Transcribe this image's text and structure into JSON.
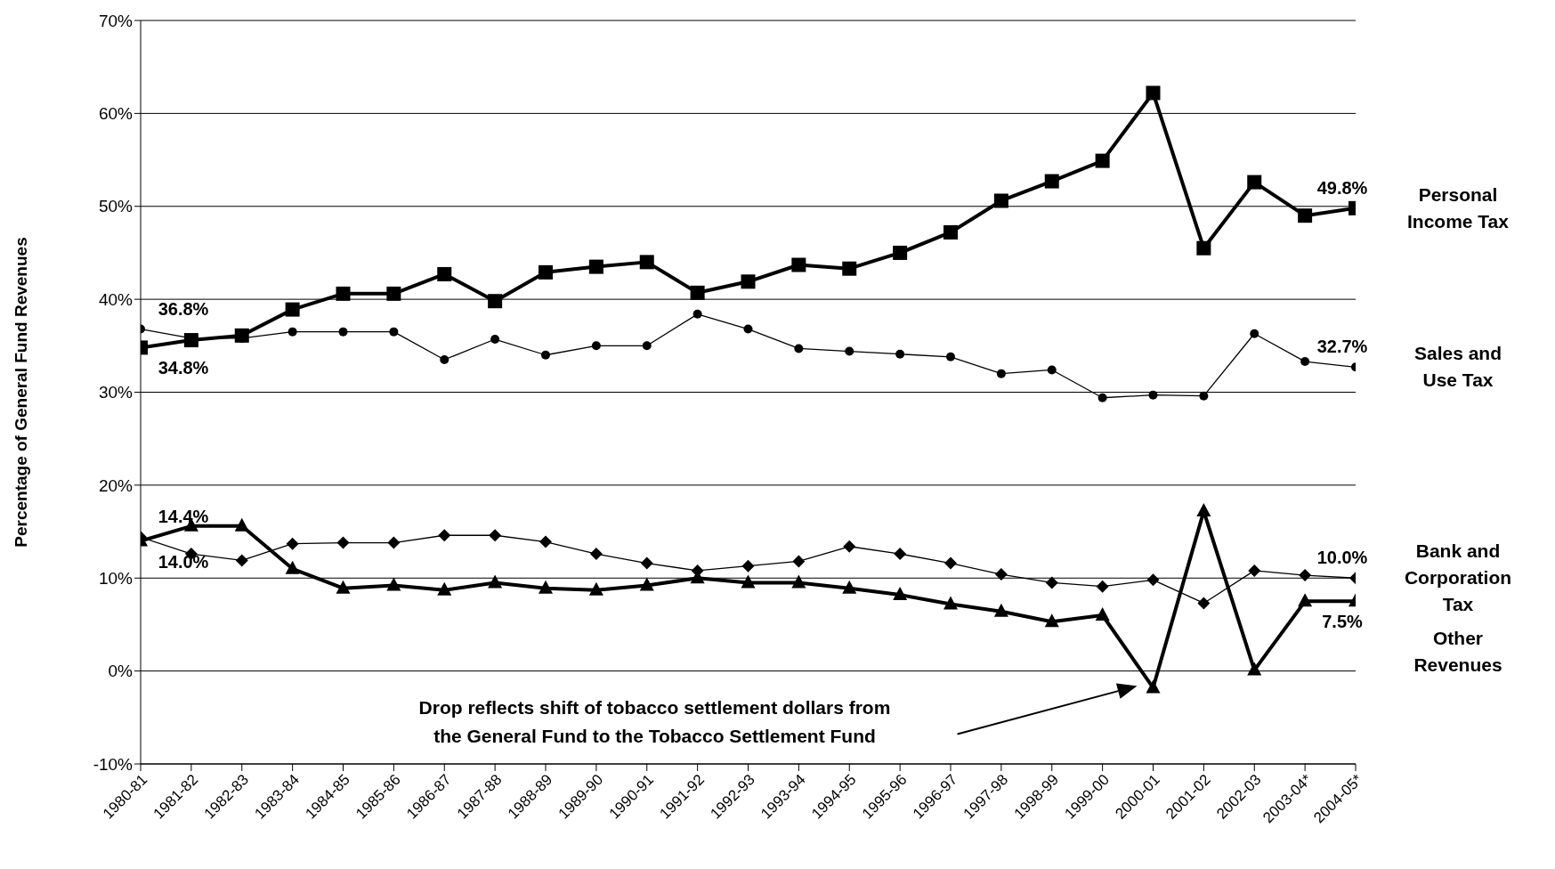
{
  "chart_data": {
    "type": "line",
    "ylabel": "Percentage of General Fund Revenues",
    "categories": [
      "1980-81",
      "1981-82",
      "1982-83",
      "1983-84",
      "1984-85",
      "1985-86",
      "1986-87",
      "1987-88",
      "1988-89",
      "1989-90",
      "1990-91",
      "1991-92",
      "1992-93",
      "1993-94",
      "1994-95",
      "1995-96",
      "1996-97",
      "1997-98",
      "1998-99",
      "1999-00",
      "2000-01",
      "2001-02",
      "2002-03",
      "2003-04*",
      "2004-05*"
    ],
    "series": [
      {
        "name": "Personal Income Tax",
        "color": "#000000",
        "marker": "square",
        "values": [
          34.8,
          35.6,
          36.1,
          38.9,
          40.6,
          40.6,
          42.7,
          39.8,
          42.9,
          43.5,
          44.0,
          40.7,
          41.9,
          43.7,
          43.3,
          45.0,
          47.2,
          50.6,
          52.7,
          54.9,
          62.2,
          45.5,
          52.6,
          49.0,
          49.8
        ],
        "value_labels": [
          "34.8%",
          null,
          null,
          null,
          null,
          null,
          null,
          null,
          null,
          null,
          null,
          null,
          null,
          null,
          null,
          null,
          null,
          null,
          null,
          null,
          null,
          null,
          null,
          null,
          "49.8%"
        ]
      },
      {
        "name": "Sales and Use Tax",
        "color": "#000000",
        "marker": "circle",
        "values": [
          36.8,
          35.8,
          35.8,
          36.5,
          36.5,
          36.5,
          33.5,
          35.7,
          34.0,
          35.0,
          35.0,
          38.4,
          36.8,
          34.7,
          34.4,
          34.1,
          33.8,
          32.0,
          32.4,
          29.4,
          29.7,
          29.6,
          36.3,
          33.3,
          32.7
        ],
        "value_labels": [
          "36.8%",
          null,
          null,
          null,
          null,
          null,
          null,
          null,
          null,
          null,
          null,
          null,
          null,
          null,
          null,
          null,
          null,
          null,
          null,
          null,
          null,
          null,
          null,
          null,
          "32.7%"
        ]
      },
      {
        "name": "Bank and Corporation Tax",
        "color": "#000000",
        "marker": "diamond",
        "values": [
          14.4,
          12.6,
          11.9,
          13.7,
          13.8,
          13.8,
          14.6,
          14.6,
          13.9,
          12.6,
          11.6,
          10.8,
          11.3,
          11.8,
          13.4,
          12.6,
          11.6,
          10.4,
          9.5,
          9.1,
          9.8,
          7.3,
          10.8,
          10.3,
          10.0
        ],
        "value_labels": [
          "14.4%",
          null,
          null,
          null,
          null,
          null,
          null,
          null,
          null,
          null,
          null,
          null,
          null,
          null,
          null,
          null,
          null,
          null,
          null,
          null,
          null,
          null,
          null,
          null,
          "10.0%"
        ]
      },
      {
        "name": "Other Revenues",
        "color": "#000000",
        "marker": "triangle",
        "values": [
          14.0,
          15.6,
          15.6,
          11.0,
          8.9,
          9.2,
          8.7,
          9.5,
          8.9,
          8.7,
          9.2,
          10.0,
          9.5,
          9.5,
          8.9,
          8.2,
          7.2,
          6.4,
          5.3,
          6.0,
          -1.8,
          17.2,
          0.1,
          7.5,
          7.5
        ],
        "value_labels": [
          "14.0%",
          null,
          null,
          null,
          null,
          null,
          null,
          null,
          null,
          null,
          null,
          null,
          null,
          null,
          null,
          null,
          null,
          null,
          null,
          null,
          null,
          null,
          null,
          null,
          "7.5%"
        ]
      }
    ],
    "ylim": [
      -10,
      70
    ],
    "yticks": [
      {
        "value": -10,
        "label": "-10%"
      },
      {
        "value": 0,
        "label": "0%"
      },
      {
        "value": 10,
        "label": "10%"
      },
      {
        "value": 20,
        "label": "20%"
      },
      {
        "value": 30,
        "label": "30%"
      },
      {
        "value": 40,
        "label": "40%"
      },
      {
        "value": 50,
        "label": "50%"
      },
      {
        "value": 60,
        "label": "60%"
      },
      {
        "value": 70,
        "label": "70%"
      }
    ],
    "grid": "y",
    "line_style": "solid",
    "annotations": [
      "Drop reflects shift of tobacco settlement dollars from the General Fund to the Tobacco Settlement Fund"
    ]
  }
}
